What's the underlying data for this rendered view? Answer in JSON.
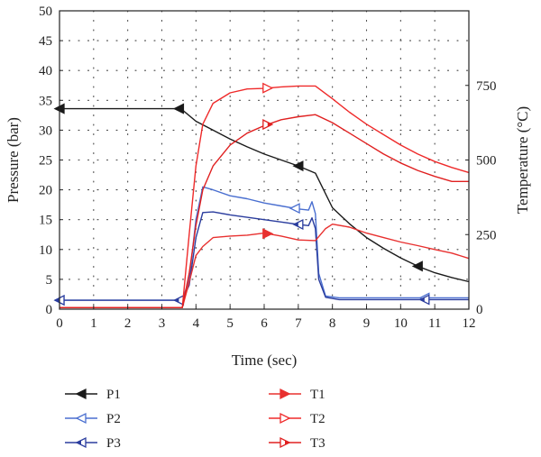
{
  "chart_data": {
    "type": "line",
    "title": "",
    "xlabel": "Time (sec)",
    "ylabel_left": "Pressure (bar)",
    "ylabel_right": "Temperature (°C)",
    "xlim": [
      0,
      12
    ],
    "ylim_left": [
      0,
      50
    ],
    "ylim_right": [
      0,
      1000
    ],
    "x_ticks": [
      0,
      1,
      2,
      3,
      4,
      5,
      6,
      7,
      8,
      9,
      10,
      11,
      12
    ],
    "y_left_ticks": [
      0,
      5,
      10,
      15,
      20,
      25,
      30,
      35,
      40,
      45,
      50
    ],
    "y_right_ticks": [
      0,
      250,
      500,
      750
    ],
    "grid": "dotted",
    "legend_position": "bottom",
    "colors": {
      "P1": "#1a1a1a",
      "P2": "#4a6fd0",
      "P3": "#2b3d9e",
      "T1": "#e8302f",
      "T2": "#ef2a2a",
      "T3": "#e02020"
    },
    "series": [
      {
        "name": "P1",
        "axis": "left",
        "marker": "filled-left-triangle",
        "markers_at": [
          0,
          3.5,
          7,
          10.5
        ],
        "points": [
          [
            0,
            33.6
          ],
          [
            3.5,
            33.6
          ],
          [
            3.6,
            33.4
          ],
          [
            4.0,
            31.5
          ],
          [
            4.5,
            30.0
          ],
          [
            5.0,
            28.5
          ],
          [
            5.5,
            27.2
          ],
          [
            6.0,
            26.0
          ],
          [
            6.5,
            25.0
          ],
          [
            7.0,
            24.0
          ],
          [
            7.5,
            22.8
          ],
          [
            8.0,
            17.0
          ],
          [
            8.5,
            14.3
          ],
          [
            9.0,
            12.0
          ],
          [
            9.5,
            10.2
          ],
          [
            10.0,
            8.6
          ],
          [
            10.5,
            7.2
          ],
          [
            11.0,
            6.1
          ],
          [
            11.5,
            5.3
          ],
          [
            12.0,
            4.6
          ]
        ]
      },
      {
        "name": "P2",
        "axis": "left",
        "marker": "open-left-triangle",
        "markers_at": [
          0,
          6.9,
          10.7
        ],
        "points": [
          [
            0,
            1.5
          ],
          [
            3.6,
            1.5
          ],
          [
            3.8,
            5.0
          ],
          [
            4.0,
            15.0
          ],
          [
            4.2,
            20.5
          ],
          [
            4.5,
            20.0
          ],
          [
            5.0,
            19.0
          ],
          [
            5.5,
            18.5
          ],
          [
            6.0,
            17.8
          ],
          [
            6.5,
            17.3
          ],
          [
            7.0,
            16.8
          ],
          [
            7.3,
            16.6
          ],
          [
            7.4,
            18.0
          ],
          [
            7.5,
            16.0
          ],
          [
            7.6,
            6.0
          ],
          [
            7.8,
            2.2
          ],
          [
            8.2,
            1.9
          ],
          [
            12.0,
            1.9
          ]
        ]
      },
      {
        "name": "P3",
        "axis": "left",
        "marker": "half-left-triangle",
        "markers_at": [
          0,
          3.5,
          7.0,
          10.7
        ],
        "points": [
          [
            0,
            1.5
          ],
          [
            3.6,
            1.5
          ],
          [
            3.8,
            4.0
          ],
          [
            4.0,
            12.0
          ],
          [
            4.2,
            16.2
          ],
          [
            4.5,
            16.3
          ],
          [
            5.0,
            15.8
          ],
          [
            5.5,
            15.4
          ],
          [
            6.0,
            15.0
          ],
          [
            6.5,
            14.6
          ],
          [
            7.0,
            14.2
          ],
          [
            7.3,
            14.0
          ],
          [
            7.4,
            15.3
          ],
          [
            7.5,
            13.5
          ],
          [
            7.6,
            5.0
          ],
          [
            7.8,
            2.0
          ],
          [
            8.2,
            1.6
          ],
          [
            12.0,
            1.6
          ]
        ]
      },
      {
        "name": "T1",
        "axis": "right",
        "marker": "filled-right-triangle",
        "markers_at": [
          6.1
        ],
        "points": [
          [
            0,
            5
          ],
          [
            3.6,
            5
          ],
          [
            3.8,
            90
          ],
          [
            4.0,
            180
          ],
          [
            4.2,
            210
          ],
          [
            4.5,
            240
          ],
          [
            5.0,
            245
          ],
          [
            5.5,
            248
          ],
          [
            6.0,
            255
          ],
          [
            6.5,
            245
          ],
          [
            7.0,
            232
          ],
          [
            7.5,
            230
          ],
          [
            7.8,
            270
          ],
          [
            8.0,
            285
          ],
          [
            8.5,
            275
          ],
          [
            9.0,
            255
          ],
          [
            9.5,
            240
          ],
          [
            10.0,
            225
          ],
          [
            10.5,
            213
          ],
          [
            11.0,
            200
          ],
          [
            11.5,
            188
          ],
          [
            12.0,
            170
          ]
        ]
      },
      {
        "name": "T2",
        "axis": "right",
        "marker": "open-right-triangle",
        "markers_at": [
          6.1
        ],
        "points": [
          [
            0,
            5
          ],
          [
            3.6,
            5
          ],
          [
            3.8,
            250
          ],
          [
            4.0,
            480
          ],
          [
            4.2,
            620
          ],
          [
            4.5,
            690
          ],
          [
            5.0,
            725
          ],
          [
            5.5,
            738
          ],
          [
            6.0,
            740
          ],
          [
            6.5,
            745
          ],
          [
            7.0,
            748
          ],
          [
            7.5,
            748
          ],
          [
            8.0,
            705
          ],
          [
            8.5,
            660
          ],
          [
            9.0,
            620
          ],
          [
            9.5,
            585
          ],
          [
            10.0,
            550
          ],
          [
            10.5,
            520
          ],
          [
            11.0,
            495
          ],
          [
            11.5,
            475
          ],
          [
            12.0,
            458
          ]
        ]
      },
      {
        "name": "T3",
        "axis": "right",
        "marker": "half-right-triangle",
        "markers_at": [
          6.1
        ],
        "points": [
          [
            0,
            5
          ],
          [
            3.6,
            5
          ],
          [
            3.8,
            120
          ],
          [
            4.0,
            280
          ],
          [
            4.2,
            400
          ],
          [
            4.5,
            480
          ],
          [
            5.0,
            550
          ],
          [
            5.5,
            590
          ],
          [
            6.0,
            615
          ],
          [
            6.5,
            635
          ],
          [
            7.0,
            645
          ],
          [
            7.5,
            652
          ],
          [
            8.0,
            625
          ],
          [
            8.5,
            590
          ],
          [
            9.0,
            555
          ],
          [
            9.5,
            520
          ],
          [
            10.0,
            490
          ],
          [
            10.5,
            465
          ],
          [
            11.0,
            445
          ],
          [
            11.5,
            428
          ],
          [
            12.0,
            428
          ]
        ]
      }
    ]
  }
}
